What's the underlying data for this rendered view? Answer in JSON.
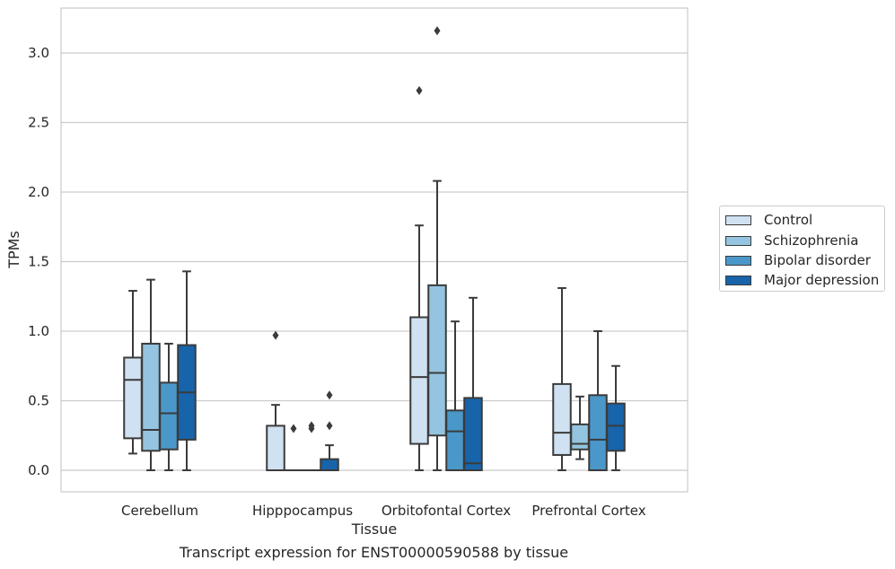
{
  "chart_data": {
    "type": "boxplot",
    "xlabel": "Tissue",
    "ylabel": "TPMs",
    "caption": "Transcript expression for ENST00000590588 by tissue",
    "ylim": [
      -0.15,
      3.32
    ],
    "yticks": [
      "0.0",
      "0.5",
      "1.0",
      "1.5",
      "2.0",
      "2.5",
      "3.0"
    ],
    "categories": [
      "Cerebellum",
      "Hipppocampus",
      "Orbitofontal Cortex",
      "Prefrontal Cortex"
    ],
    "legend_position": "right",
    "grid": "horizontal",
    "series": [
      {
        "name": "Control",
        "color": "#d0e1f2",
        "boxes": [
          {
            "whislo": 0.12,
            "q1": 0.23,
            "med": 0.65,
            "q3": 0.81,
            "whishi": 1.29,
            "fliers": []
          },
          {
            "whislo": 0.0,
            "q1": 0.0,
            "med": 0.0,
            "q3": 0.32,
            "whishi": 0.47,
            "fliers": [
              0.97
            ]
          },
          {
            "whislo": 0.0,
            "q1": 0.19,
            "med": 0.67,
            "q3": 1.1,
            "whishi": 1.76,
            "fliers": [
              2.73
            ]
          },
          {
            "whislo": 0.0,
            "q1": 0.11,
            "med": 0.27,
            "q3": 0.62,
            "whishi": 1.31,
            "fliers": []
          }
        ]
      },
      {
        "name": "Schizophrenia",
        "color": "#94c4df",
        "boxes": [
          {
            "whislo": 0.0,
            "q1": 0.14,
            "med": 0.29,
            "q3": 0.91,
            "whishi": 1.37,
            "fliers": []
          },
          {
            "whislo": 0.0,
            "q1": 0.0,
            "med": 0.0,
            "q3": 0.0,
            "whishi": 0.0,
            "fliers": [
              0.3
            ]
          },
          {
            "whislo": 0.0,
            "q1": 0.25,
            "med": 0.7,
            "q3": 1.33,
            "whishi": 2.08,
            "fliers": [
              3.16
            ]
          },
          {
            "whislo": 0.08,
            "q1": 0.15,
            "med": 0.19,
            "q3": 0.33,
            "whishi": 0.53,
            "fliers": []
          }
        ]
      },
      {
        "name": "Bipolar disorder",
        "color": "#4a98c9",
        "boxes": [
          {
            "whislo": 0.0,
            "q1": 0.15,
            "med": 0.41,
            "q3": 0.63,
            "whishi": 0.91,
            "fliers": []
          },
          {
            "whislo": 0.0,
            "q1": 0.0,
            "med": 0.0,
            "q3": 0.0,
            "whishi": 0.0,
            "fliers": [
              0.3,
              0.32
            ]
          },
          {
            "whislo": 0.0,
            "q1": 0.0,
            "med": 0.28,
            "q3": 0.43,
            "whishi": 1.07,
            "fliers": []
          },
          {
            "whislo": 0.0,
            "q1": 0.0,
            "med": 0.22,
            "q3": 0.54,
            "whishi": 1.0,
            "fliers": []
          }
        ]
      },
      {
        "name": "Major depression",
        "color": "#1764ab",
        "boxes": [
          {
            "whislo": 0.0,
            "q1": 0.22,
            "med": 0.56,
            "q3": 0.9,
            "whishi": 1.43,
            "fliers": []
          },
          {
            "whislo": 0.0,
            "q1": 0.0,
            "med": 0.0,
            "q3": 0.08,
            "whishi": 0.18,
            "fliers": [
              0.32,
              0.54
            ]
          },
          {
            "whislo": 0.0,
            "q1": 0.0,
            "med": 0.05,
            "q3": 0.52,
            "whishi": 1.24,
            "fliers": []
          },
          {
            "whislo": 0.0,
            "q1": 0.14,
            "med": 0.32,
            "q3": 0.48,
            "whishi": 0.75,
            "fliers": []
          }
        ]
      }
    ]
  }
}
